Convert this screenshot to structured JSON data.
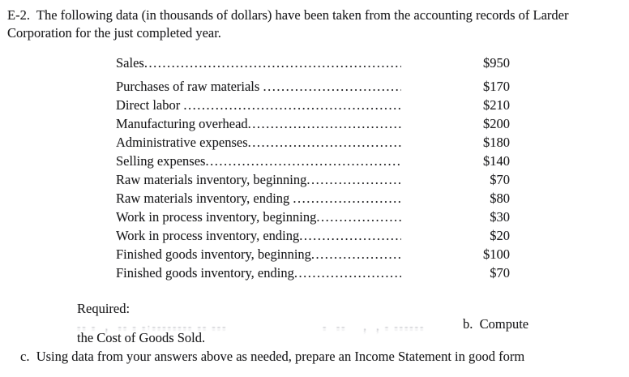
{
  "intro": {
    "line1": "E-2.  The following data (in thousands of dollars) have been taken from the accounting records of Larder",
    "line2": "Corporation for the just completed year."
  },
  "items": [
    {
      "label": "Sales",
      "value": "$950"
    },
    {
      "label": "Purchases of raw materials ",
      "value": "$170"
    },
    {
      "label": "Direct labor ",
      "value": "$210"
    },
    {
      "label": "Manufacturing overhead",
      "value": "$200"
    },
    {
      "label": "Administrative expenses",
      "value": "$180"
    },
    {
      "label": "Selling expenses",
      "value": "$140"
    },
    {
      "label": "Raw materials inventory, beginning",
      "value": "$70"
    },
    {
      "label": "Raw materials inventory, ending ",
      "value": "$80"
    },
    {
      "label": "Work in process inventory, beginning",
      "value": "$30"
    },
    {
      "label": "Work in process inventory, ending",
      "value": "$20"
    },
    {
      "label": "Finished goods inventory, beginning",
      "value": "$100"
    },
    {
      "label": "Finished goods inventory, ending",
      "value": "$70"
    }
  ],
  "required": {
    "heading": "Required:",
    "erased_left": "-- -  ,  -- - -·-------- -- ---",
    "erased_right": "-  --    ,  , - ------",
    "item_b": "b.  Compute",
    "item_b_continuation": "the Cost of Goods Sold.",
    "item_c": "c.  Using data from your answers above as needed, prepare an Income Statement in good form"
  }
}
